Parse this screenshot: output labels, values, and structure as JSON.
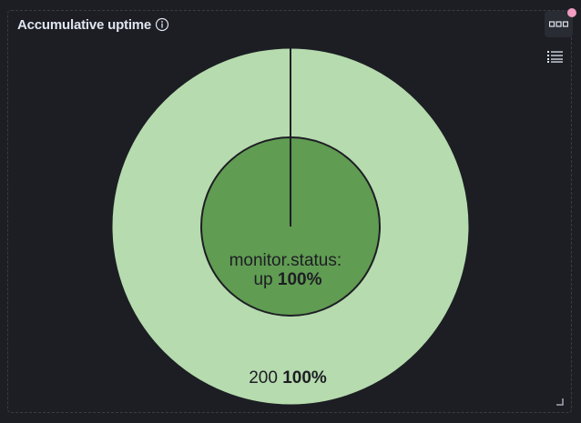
{
  "panel": {
    "title": "Accumulative uptime",
    "info_icon": "info-icon",
    "menu_icon": "options-menu-icon",
    "legend_icon": "legend-list-icon",
    "resize_icon": "resize-handle-icon"
  },
  "colors": {
    "outer_ring": "#b6dbae",
    "inner_pie": "#609c52",
    "background": "#1d1e24",
    "notify_dot": "#f29cc2"
  },
  "chart_data": {
    "type": "pie",
    "layers": [
      {
        "name": "",
        "slices": [
          {
            "label": "monitor.status:",
            "label2": "up",
            "percent_label": "100%",
            "value": 100
          }
        ]
      },
      {
        "name": "",
        "slices": [
          {
            "label": "200",
            "percent_label": "100%",
            "value": 100
          }
        ]
      }
    ],
    "legend": "hidden"
  }
}
